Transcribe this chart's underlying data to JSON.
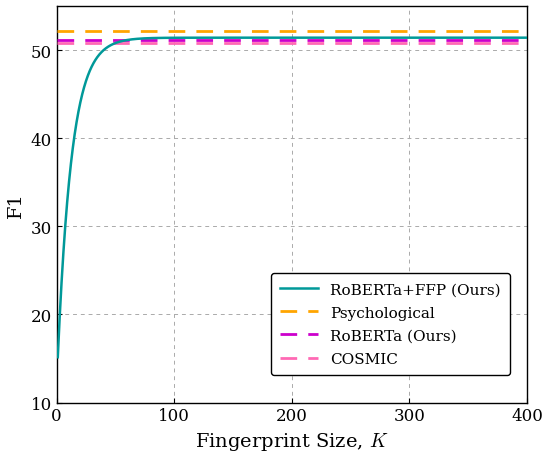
{
  "title": "",
  "xlabel": "Fingerprint Size, $K$",
  "ylabel": "F1",
  "xlim": [
    0,
    400
  ],
  "ylim": [
    10,
    55
  ],
  "yticks": [
    10,
    20,
    30,
    40,
    50
  ],
  "xticks": [
    0,
    100,
    200,
    300,
    400
  ],
  "curve_color": "#009999",
  "curve_label": "RoBERTa+FFP (Ours)",
  "curve_start_f1": 12.0,
  "curve_sat_f1": 51.4,
  "curve_c": 12.0,
  "psychological_f1": 52.2,
  "psychological_color": "#FFA500",
  "psychological_label": "Psychological",
  "roberta_f1": 51.1,
  "roberta_color": "#CC00CC",
  "roberta_label": "RoBERTa (Ours)",
  "cosmic_f1": 50.85,
  "cosmic_color": "#FF69B4",
  "cosmic_label": "COSMIC",
  "grid_color": "#aaaaaa",
  "bg_color": "#ffffff",
  "legend_fontsize": 11,
  "axis_fontsize": 14,
  "tick_fontsize": 12
}
